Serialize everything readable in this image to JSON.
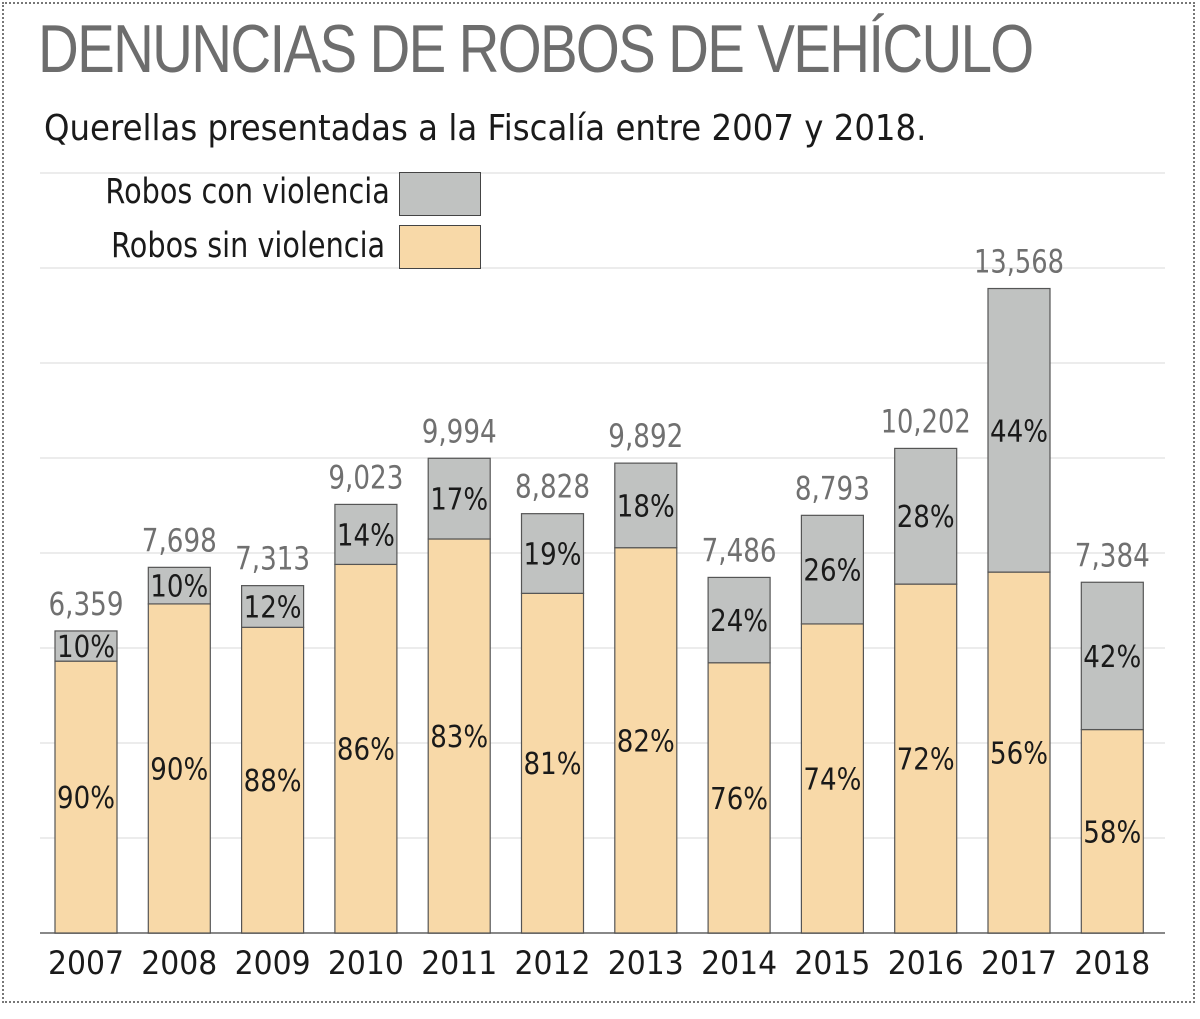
{
  "chart_data": {
    "type": "bar",
    "stacked": true,
    "title": "DENUNCIAS DE ROBOS DE VEHÍCULO",
    "subtitle": "Querellas presentadas a la Fiscalía entre 2007 y 2018.",
    "categories": [
      "2007",
      "2008",
      "2009",
      "2010",
      "2011",
      "2012",
      "2013",
      "2014",
      "2015",
      "2016",
      "2017",
      "2018"
    ],
    "totals": [
      6359,
      7698,
      7313,
      9023,
      9994,
      8828,
      9892,
      7486,
      8793,
      10202,
      13568,
      7384
    ],
    "total_labels": [
      "6,359",
      "7,698",
      "7,313",
      "9,023",
      "9,994",
      "8,828",
      "9,892",
      "7,486",
      "8,793",
      "10,202",
      "13,568",
      "7,384"
    ],
    "series": [
      {
        "name": "Robos sin violencia",
        "color": "#f8d9a8",
        "percent": [
          90,
          90,
          88,
          86,
          83,
          81,
          82,
          76,
          74,
          72,
          56,
          58
        ],
        "labels": [
          "90%",
          "90%",
          "88%",
          "86%",
          "83%",
          "81%",
          "82%",
          "76%",
          "74%",
          "72%",
          "56%",
          "58%"
        ]
      },
      {
        "name": "Robos con violencia",
        "color": "#c0c2c1",
        "percent": [
          10,
          10,
          12,
          14,
          17,
          19,
          18,
          24,
          26,
          28,
          44,
          42
        ],
        "labels": [
          "10%",
          "10%",
          "12%",
          "14%",
          "17%",
          "19%",
          "18%",
          "24%",
          "26%",
          "28%",
          "44%",
          "42%"
        ]
      }
    ],
    "ylim": [
      0,
      16000
    ],
    "grid": true,
    "legend_position": "top-left"
  }
}
